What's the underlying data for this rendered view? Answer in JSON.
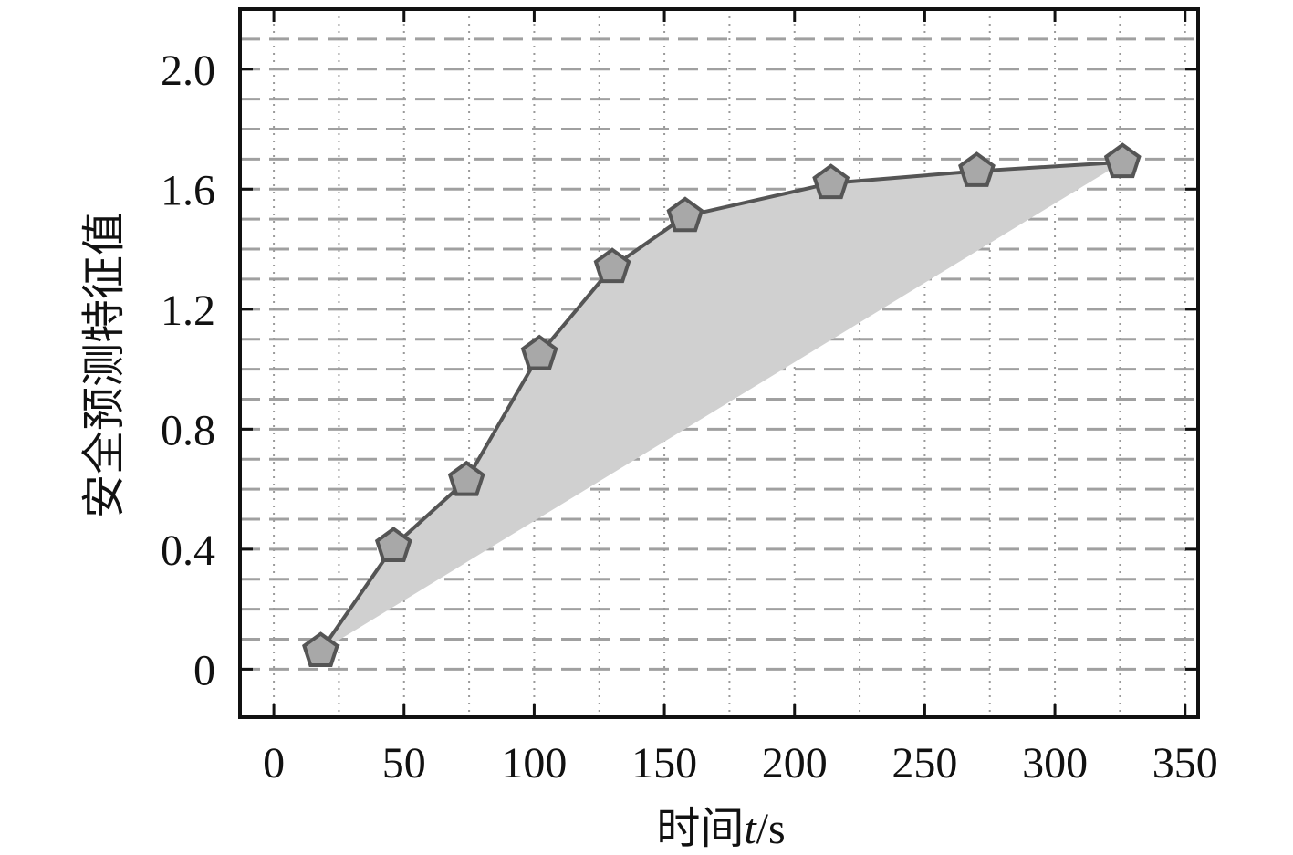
{
  "chart_data": {
    "type": "line",
    "xlabel_prefix": "时间",
    "xlabel_var": "t",
    "xlabel_unit": "/s",
    "ylabel": "安全预测特征值",
    "xlim": [
      -13,
      355
    ],
    "ylim": [
      -0.16,
      2.2
    ],
    "xticks": [
      0,
      50,
      100,
      150,
      200,
      250,
      300,
      350
    ],
    "yticks": [
      0,
      0.4,
      0.8,
      1.2,
      1.6,
      2.0
    ],
    "ytick_labels": [
      "0",
      "0.4",
      "0.8",
      "1.2",
      "1.6",
      "2.0"
    ],
    "xtick_labels": [
      "0",
      "50",
      "100",
      "150",
      "200",
      "250",
      "300",
      "350"
    ],
    "grid": true,
    "series": [
      {
        "marker": "pentagon",
        "x": [
          18,
          46,
          74,
          102,
          130,
          158,
          214,
          270,
          326
        ],
        "y": [
          0.06,
          0.41,
          0.63,
          1.05,
          1.34,
          1.51,
          1.62,
          1.66,
          1.69
        ]
      }
    ],
    "shaded_region": {
      "lower_start": [
        18,
        0.06
      ],
      "lower_end": [
        326,
        1.69
      ]
    },
    "colors": {
      "line": "#555555",
      "marker_fill": "#a8a8a8",
      "shade": "#d0d0d0",
      "grid": "#a0a0a0"
    }
  }
}
